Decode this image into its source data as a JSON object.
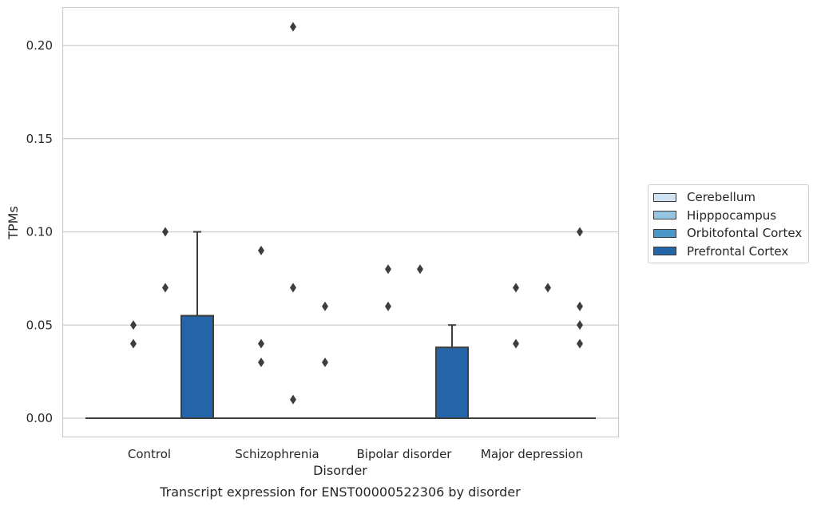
{
  "chart_data": {
    "type": "box",
    "xlabel": "Disorder",
    "ylabel": "TPMs",
    "caption": "Transcript expression for ENST00000522306 by disorder",
    "categories": [
      "Control",
      "Schizophrenia",
      "Bipolar disorder",
      "Major depression"
    ],
    "yticks": [
      "0.00",
      "0.05",
      "0.10",
      "0.15",
      "0.20"
    ],
    "ytick_values": [
      0.0,
      0.05,
      0.1,
      0.15,
      0.2
    ],
    "ylim": [
      -0.01,
      0.22
    ],
    "grid": true,
    "legend_position": "right",
    "series": [
      {
        "name": "Cerebellum",
        "color": "#d0e1f2",
        "boxes": [
          {
            "q1": 0,
            "median": 0,
            "q3": 0,
            "whisker_low": 0,
            "whisker_high": 0,
            "outliers": []
          },
          {
            "q1": 0,
            "median": 0,
            "q3": 0,
            "whisker_low": 0,
            "whisker_high": 0,
            "outliers": []
          },
          {
            "q1": 0,
            "median": 0,
            "q3": 0,
            "whisker_low": 0,
            "whisker_high": 0,
            "outliers": []
          },
          {
            "q1": 0,
            "median": 0,
            "q3": 0,
            "whisker_low": 0,
            "whisker_high": 0,
            "outliers": []
          }
        ]
      },
      {
        "name": "Hipppocampus",
        "color": "#94c4df",
        "boxes": [
          {
            "q1": 0,
            "median": 0,
            "q3": 0,
            "whisker_low": 0,
            "whisker_high": 0,
            "outliers": [
              0.04,
              0.05
            ]
          },
          {
            "q1": 0,
            "median": 0,
            "q3": 0,
            "whisker_low": 0,
            "whisker_high": 0,
            "outliers": [
              0.03,
              0.04,
              0.09
            ]
          },
          {
            "q1": 0,
            "median": 0,
            "q3": 0,
            "whisker_low": 0,
            "whisker_high": 0,
            "outliers": [
              0.06,
              0.08
            ]
          },
          {
            "q1": 0,
            "median": 0,
            "q3": 0,
            "whisker_low": 0,
            "whisker_high": 0,
            "outliers": [
              0.04,
              0.07
            ]
          }
        ]
      },
      {
        "name": "Orbitofontal Cortex",
        "color": "#4a98c9",
        "boxes": [
          {
            "q1": 0,
            "median": 0,
            "q3": 0,
            "whisker_low": 0,
            "whisker_high": 0,
            "outliers": [
              0.07,
              0.1
            ]
          },
          {
            "q1": 0,
            "median": 0,
            "q3": 0,
            "whisker_low": 0,
            "whisker_high": 0,
            "outliers": [
              0.01,
              0.07,
              0.21
            ]
          },
          {
            "q1": 0,
            "median": 0,
            "q3": 0,
            "whisker_low": 0,
            "whisker_high": 0,
            "outliers": [
              0.08
            ]
          },
          {
            "q1": 0,
            "median": 0,
            "q3": 0,
            "whisker_low": 0,
            "whisker_high": 0,
            "outliers": [
              0.07
            ]
          }
        ]
      },
      {
        "name": "Prefrontal Cortex",
        "color": "#2464a8",
        "boxes": [
          {
            "q1": 0,
            "median": 0,
            "q3": 0.055,
            "whisker_low": 0,
            "whisker_high": 0.1,
            "outliers": []
          },
          {
            "q1": 0,
            "median": 0,
            "q3": 0,
            "whisker_low": 0,
            "whisker_high": 0,
            "outliers": [
              0.03,
              0.06
            ]
          },
          {
            "q1": 0,
            "median": 0,
            "q3": 0.038,
            "whisker_low": 0,
            "whisker_high": 0.05,
            "outliers": []
          },
          {
            "q1": 0,
            "median": 0,
            "q3": 0,
            "whisker_low": 0,
            "whisker_high": 0,
            "outliers": [
              0.04,
              0.1
            ]
          }
        ]
      }
    ],
    "extra_outliers": [
      {
        "category_index": 3,
        "series_index": 3,
        "value": 0.05
      },
      {
        "category_index": 3,
        "series_index": 3,
        "value": 0.06
      }
    ]
  }
}
